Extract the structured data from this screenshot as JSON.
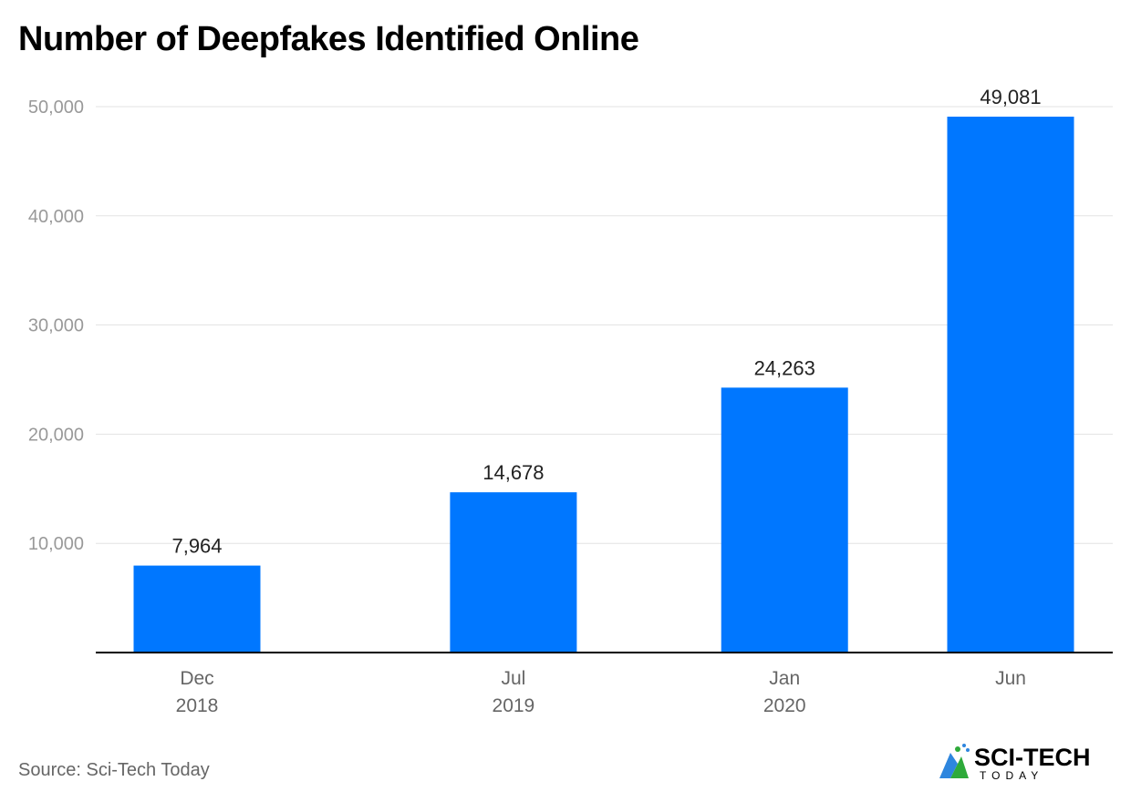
{
  "chart_data": {
    "type": "bar",
    "title": "Number of Deepfakes Identified Online",
    "x": [
      "2018-12",
      "2019-07",
      "2020-01",
      "2020-06"
    ],
    "tick_labels": [
      [
        "Dec",
        "2018"
      ],
      [
        "Jul",
        "2019"
      ],
      [
        "Jan",
        "2020"
      ],
      [
        "Jun",
        ""
      ]
    ],
    "values": [
      7964,
      14678,
      24263,
      49081
    ],
    "data_labels": [
      "7,964",
      "14,678",
      "24,263",
      "49,081"
    ],
    "y_ticks": [
      10000,
      20000,
      30000,
      40000,
      50000
    ],
    "y_tick_labels": [
      "10,000",
      "20,000",
      "30,000",
      "40,000",
      "50,000"
    ],
    "ylim": [
      0,
      50000
    ],
    "xlabel": "",
    "ylabel": "",
    "grid": true,
    "bar_color": "#0077FF"
  },
  "source": "Source: Sci-Tech Today",
  "logo": {
    "text": "SCI-TECH",
    "subtext": "TODAY",
    "colors": [
      "#2E86DE",
      "#2EAA3A",
      "#000000"
    ]
  }
}
